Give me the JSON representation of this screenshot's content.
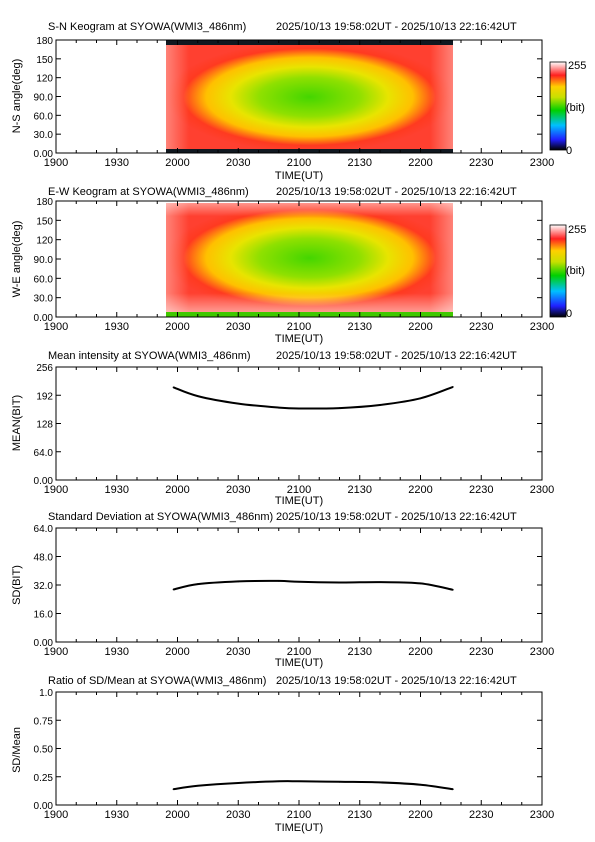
{
  "time_range": "2025/10/13 19:58:02UT - 2025/10/13 22:16:42UT",
  "x_axis": {
    "label": "TIME(UT)",
    "ticks": [
      "1900",
      "1930",
      "2000",
      "2030",
      "2100",
      "2130",
      "2200",
      "2230",
      "2300"
    ]
  },
  "colorbar": {
    "max_label": "255",
    "unit_label": "(bit)",
    "min_label": "0"
  },
  "chart_data": [
    {
      "type": "heatmap",
      "title": "S-N Keogram at SYOWA(WMI3_486nm)",
      "ylabel": "N-S angle(deg)",
      "yticks": [
        "180",
        "150",
        "120",
        "90.0",
        "60.0",
        "30.0",
        "0.00"
      ],
      "ylim": [
        0,
        180
      ],
      "data_start_hhmm": "1958",
      "data_end_hhmm": "2216",
      "pattern": "bright center (green, ~150 bit) fading to red/white near edges; dark bands at 0 and 180 deg"
    },
    {
      "type": "heatmap",
      "title": "E-W Keogram at SYOWA(WMI3_486nm)",
      "ylabel": "W-E angle(deg)",
      "yticks": [
        "180",
        "150",
        "120",
        "90.0",
        "60.0",
        "30.0",
        "0.00"
      ],
      "ylim": [
        0,
        180
      ],
      "data_start_hhmm": "1958",
      "data_end_hhmm": "2216",
      "pattern": "bright center (green) fading to red/white near edges; green band near 0 deg"
    },
    {
      "type": "line",
      "title": "Mean intensity at SYOWA(WMI3_486nm)",
      "ylabel": "MEAN(BIT)",
      "yticks": [
        "256",
        "192",
        "128",
        "64.0",
        "0.00"
      ],
      "ylim": [
        0,
        256
      ],
      "x": [
        "1958",
        "2010",
        "2030",
        "2050",
        "2100",
        "2120",
        "2140",
        "2200",
        "2216"
      ],
      "values": [
        210,
        190,
        173,
        164,
        162,
        163,
        170,
        185,
        211
      ]
    },
    {
      "type": "line",
      "title": "Standard Deviation at SYOWA(WMI3_486nm)",
      "ylabel": "SD(BIT)",
      "yticks": [
        "64.0",
        "48.0",
        "32.0",
        "16.0",
        "0.00"
      ],
      "ylim": [
        0,
        64
      ],
      "x": [
        "1958",
        "2010",
        "2030",
        "2050",
        "2100",
        "2120",
        "2140",
        "2200",
        "2216"
      ],
      "values": [
        29.5,
        32.5,
        34.0,
        34.3,
        33.8,
        33.4,
        33.6,
        32.9,
        29.3
      ]
    },
    {
      "type": "line",
      "title": "Ratio of SD/Mean at SYOWA(WMI3_486nm)",
      "ylabel": "SD/Mean",
      "yticks": [
        "1.0",
        "0.75",
        "0.50",
        "0.25",
        "0.00"
      ],
      "ylim": [
        0,
        1.0
      ],
      "x": [
        "1958",
        "2010",
        "2030",
        "2050",
        "2100",
        "2120",
        "2140",
        "2200",
        "2216"
      ],
      "values": [
        0.14,
        0.17,
        0.195,
        0.21,
        0.21,
        0.205,
        0.2,
        0.18,
        0.14
      ]
    }
  ]
}
